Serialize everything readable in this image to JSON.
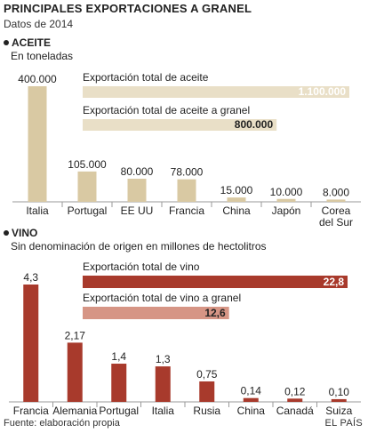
{
  "header": {
    "title": "PRINCIPALES EXPORTACIONES A GRANEL",
    "subtitle": "Datos de 2014"
  },
  "footer": {
    "source": "Fuente: elaboración propia",
    "brand": "EL PAÍS"
  },
  "colors": {
    "aceite_bar": "#d9c9a3",
    "aceite_bg_bar": "#e9dfc7",
    "vino_bar": "#a83a2c",
    "vino_granel_bar": "#d69585",
    "axis": "#999999"
  },
  "chart_data": [
    {
      "type": "bar",
      "section": "ACEITE",
      "subtitle": "En toneladas",
      "categories": [
        "Italia",
        "Portugal",
        "EE UU",
        "Francia",
        "China",
        "Japón",
        "Corea del Sur"
      ],
      "category_lines": [
        [
          "Italia"
        ],
        [
          "Portugal"
        ],
        [
          "EE UU"
        ],
        [
          "Francia"
        ],
        [
          "China"
        ],
        [
          "Japón"
        ],
        [
          "Corea",
          "del Sur"
        ]
      ],
      "values": [
        400000,
        105000,
        80000,
        78000,
        15000,
        10000,
        8000
      ],
      "value_labels": [
        "400.000",
        "105.000",
        "80.000",
        "78.000",
        "15.000",
        "10.000",
        "8.000"
      ],
      "ylim": [
        0,
        400000
      ],
      "totals": [
        {
          "label": "Exportación total de aceite",
          "value": 1100000,
          "value_label": "1.100.000"
        },
        {
          "label": "Exportación total de aceite a granel",
          "value": 800000,
          "value_label": "800.000"
        }
      ]
    },
    {
      "type": "bar",
      "section": "VINO",
      "subtitle": "Sin denominación de origen en millones de hectolitros",
      "categories": [
        "Francia",
        "Alemania",
        "Portugal",
        "Italia",
        "Rusia",
        "China",
        "Canadá",
        "Suiza"
      ],
      "category_lines": [
        [
          "Francia"
        ],
        [
          "Alemania"
        ],
        [
          "Portugal"
        ],
        [
          "Italia"
        ],
        [
          "Rusia"
        ],
        [
          "China"
        ],
        [
          "Canadá"
        ],
        [
          "Suiza"
        ]
      ],
      "values": [
        4.3,
        2.17,
        1.4,
        1.3,
        0.75,
        0.14,
        0.12,
        0.1
      ],
      "value_labels": [
        "4,3",
        "2,17",
        "1,4",
        "1,3",
        "0,75",
        "0,14",
        "0,12",
        "0,10"
      ],
      "ylim": [
        0,
        4.3
      ],
      "totals": [
        {
          "label": "Exportación total de vino",
          "value": 22.8,
          "value_label": "22,8"
        },
        {
          "label": "Exportación total de vino a granel",
          "value": 12.6,
          "value_label": "12,6"
        }
      ]
    }
  ]
}
